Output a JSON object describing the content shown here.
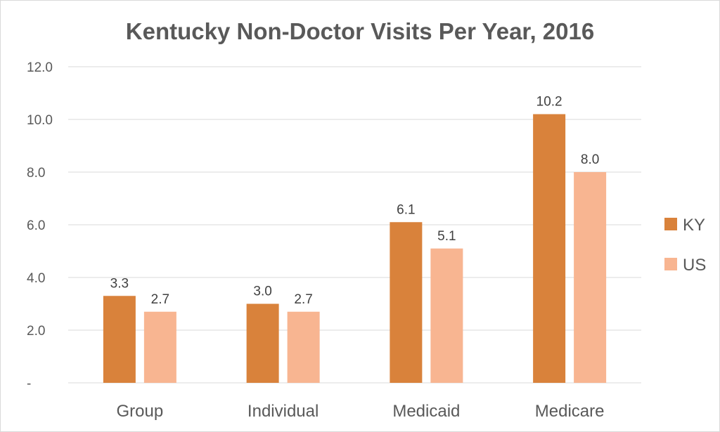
{
  "chart_data": {
    "type": "bar",
    "title": "Kentucky Non-Doctor Visits Per Year, 2016",
    "categories": [
      "Group",
      "Individual",
      "Medicaid",
      "Medicare"
    ],
    "series": [
      {
        "name": "KY",
        "values": [
          3.3,
          3.0,
          6.1,
          10.2
        ],
        "color": "#D9823B"
      },
      {
        "name": "US",
        "values": [
          2.7,
          2.7,
          5.1,
          8.0
        ],
        "color": "#F8B591"
      }
    ],
    "data_labels": [
      [
        "3.3",
        "3.0",
        "6.1",
        "10.2"
      ],
      [
        "2.7",
        "2.7",
        "5.1",
        "8.0"
      ]
    ],
    "ylim": [
      0,
      12
    ],
    "yticks": [
      0,
      2,
      4,
      6,
      8,
      10,
      12
    ],
    "ytick_labels": [
      "-",
      "2.0",
      "4.0",
      "6.0",
      "8.0",
      "10.0",
      "12.0"
    ],
    "xlabel": "",
    "ylabel": "",
    "grid": true,
    "legend_position": "right"
  }
}
